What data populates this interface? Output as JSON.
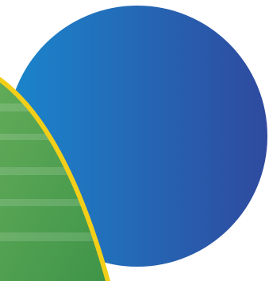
{
  "graphic": {
    "colors": {
      "background": "#ffffff",
      "circle_gradient_start": "#1a86cc",
      "circle_gradient_end": "#2f4a9f",
      "arc_stroke": "#f3cf19",
      "green_fill_light": "#61ab59",
      "green_fill_dark": "#3f9448"
    }
  }
}
